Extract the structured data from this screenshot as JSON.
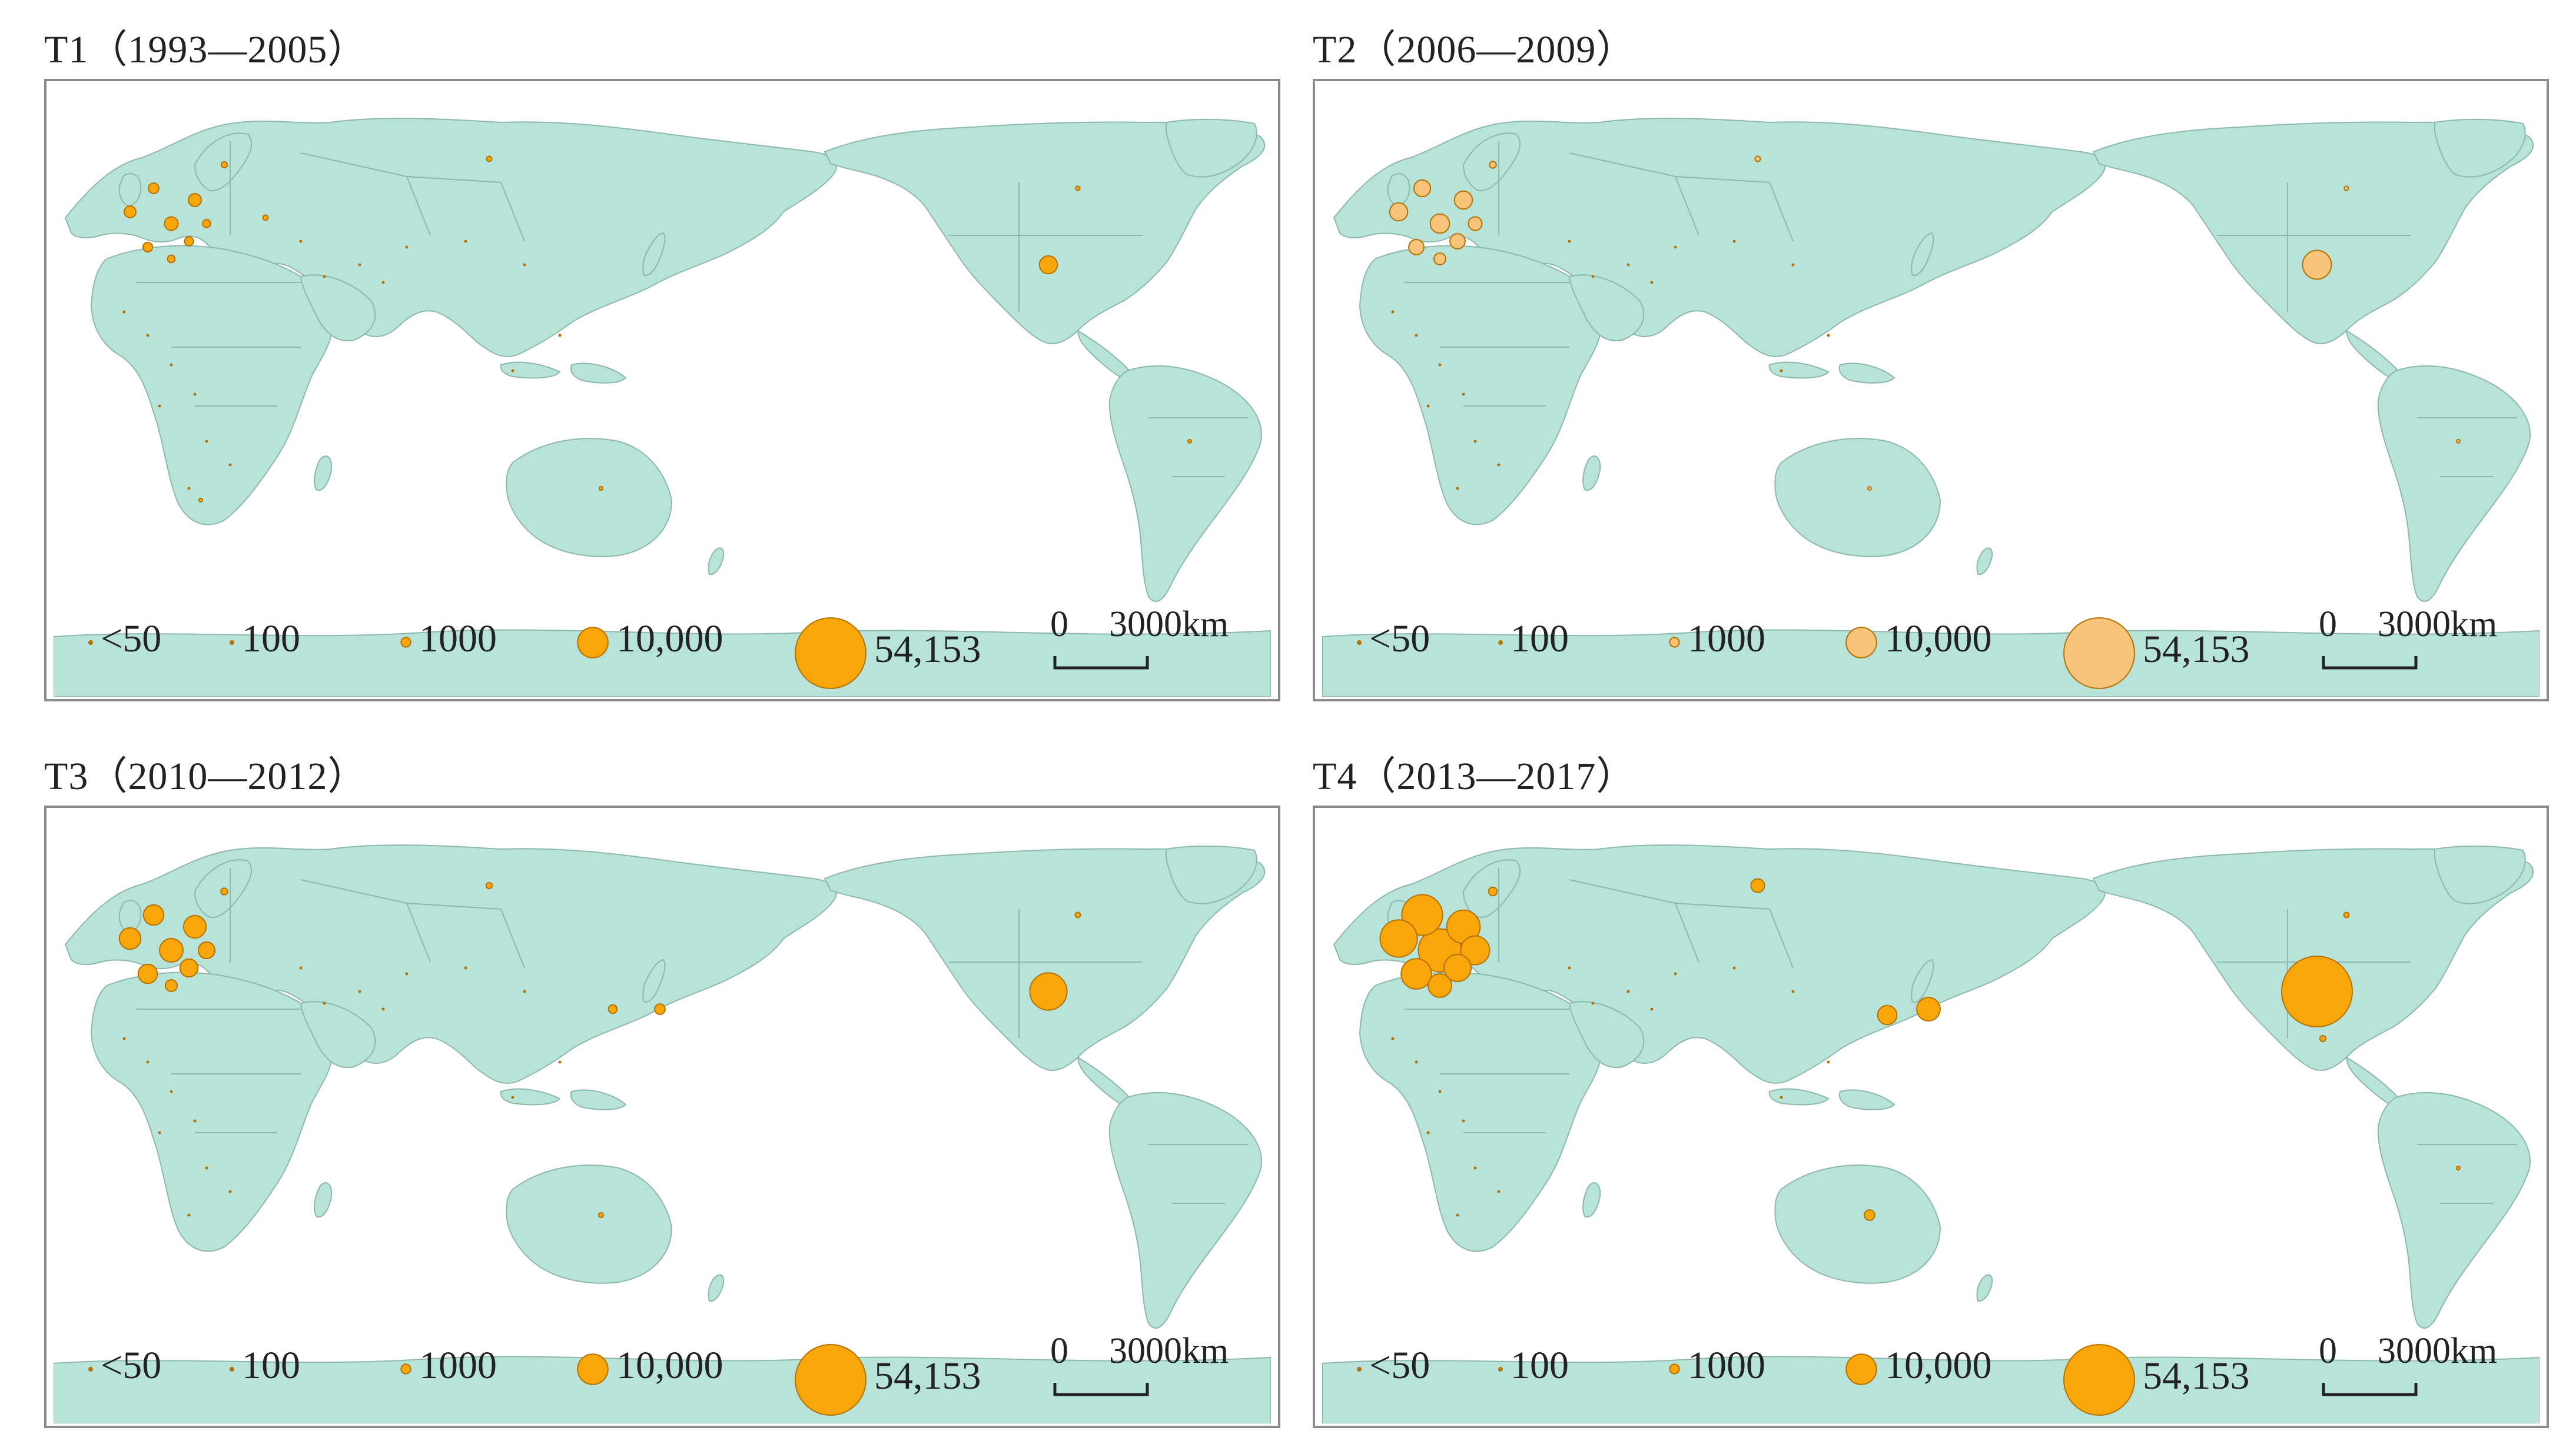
{
  "colors": {
    "land": "#b8e3d9",
    "border": "#8fb8ad",
    "symbol": "#f8a60a",
    "symbol_pale": "#f8c37a",
    "stroke": "#b57200"
  },
  "legend": {
    "items": [
      {
        "label": "<50",
        "value": 50
      },
      {
        "label": "100",
        "value": 100
      },
      {
        "label": "1000",
        "value": 1000
      },
      {
        "label": "10,000",
        "value": 10000
      },
      {
        "label": "54,153",
        "value": 54153
      }
    ],
    "scale_zero": "0",
    "scale_distance": "3000km"
  },
  "panels": [
    {
      "id": "t1",
      "title": "T1（1993—2005）",
      "pale": false,
      "symbols": [
        {
          "region": "Western Europe",
          "value": 2000
        },
        {
          "region": "Western Europe",
          "value": 1500
        },
        {
          "region": "Western Europe",
          "value": 1200
        },
        {
          "region": "Western Europe",
          "value": 1800
        },
        {
          "region": "Western Europe",
          "value": 1000
        },
        {
          "region": "Western Europe",
          "value": 900
        },
        {
          "region": "Western Europe",
          "value": 700
        },
        {
          "region": "Western Europe",
          "value": 600
        },
        {
          "region": "Northern Europe",
          "value": 400
        },
        {
          "region": "Eastern Europe",
          "value": 300
        },
        {
          "region": "Russia",
          "value": 300
        },
        {
          "region": "Canada",
          "value": 200
        },
        {
          "region": "United States",
          "value": 3500
        },
        {
          "region": "Australia",
          "value": 150
        },
        {
          "region": "South Africa",
          "value": 100
        },
        {
          "region": "Brazil",
          "value": 80
        }
      ]
    },
    {
      "id": "t2",
      "title": "T2（2006—2009）",
      "pale": true,
      "symbols": [
        {
          "region": "Western Europe",
          "value": 4000
        },
        {
          "region": "Western Europe",
          "value": 3500
        },
        {
          "region": "Western Europe",
          "value": 3000
        },
        {
          "region": "Western Europe",
          "value": 3500
        },
        {
          "region": "Western Europe",
          "value": 2500
        },
        {
          "region": "Western Europe",
          "value": 2500
        },
        {
          "region": "Western Europe",
          "value": 2000
        },
        {
          "region": "Western Europe",
          "value": 1500
        },
        {
          "region": "Northern Europe",
          "value": 500
        },
        {
          "region": "Russia",
          "value": 300
        },
        {
          "region": "Canada",
          "value": 200
        },
        {
          "region": "United States",
          "value": 9000
        },
        {
          "region": "Australia",
          "value": 100
        },
        {
          "region": "Brazil",
          "value": 100
        }
      ]
    },
    {
      "id": "t3",
      "title": "T3（2010—2012）",
      "pale": false,
      "symbols": [
        {
          "region": "Western Europe",
          "value": 6000
        },
        {
          "region": "Western Europe",
          "value": 5000
        },
        {
          "region": "Western Europe",
          "value": 4500
        },
        {
          "region": "Western Europe",
          "value": 5500
        },
        {
          "region": "Western Europe",
          "value": 4000
        },
        {
          "region": "Western Europe",
          "value": 3500
        },
        {
          "region": "Western Europe",
          "value": 3000
        },
        {
          "region": "Western Europe",
          "value": 1500
        },
        {
          "region": "Northern Europe",
          "value": 500
        },
        {
          "region": "Russia",
          "value": 400
        },
        {
          "region": "Korea",
          "value": 800
        },
        {
          "region": "Japan",
          "value": 1200
        },
        {
          "region": "Canada",
          "value": 300
        },
        {
          "region": "United States",
          "value": 15000
        },
        {
          "region": "Australia",
          "value": 250
        }
      ]
    },
    {
      "id": "t4",
      "title": "T4（2013—2017）",
      "pale": false,
      "symbols": [
        {
          "region": "Western Europe",
          "value": 20000
        },
        {
          "region": "Western Europe",
          "value": 15000
        },
        {
          "region": "Western Europe",
          "value": 18000
        },
        {
          "region": "Western Europe",
          "value": 12000
        },
        {
          "region": "Western Europe",
          "value": 10000
        },
        {
          "region": "Western Europe",
          "value": 8000
        },
        {
          "region": "Western Europe",
          "value": 9000
        },
        {
          "region": "Western Europe",
          "value": 6000
        },
        {
          "region": "Northern Europe",
          "value": 800
        },
        {
          "region": "Russia",
          "value": 2000
        },
        {
          "region": "China",
          "value": 4000
        },
        {
          "region": "Japan",
          "value": 6000
        },
        {
          "region": "Canada",
          "value": 300
        },
        {
          "region": "United States",
          "value": 54153
        },
        {
          "region": "Mexico",
          "value": 400
        },
        {
          "region": "Australia",
          "value": 1200
        },
        {
          "region": "Brazil",
          "value": 100
        }
      ]
    }
  ]
}
